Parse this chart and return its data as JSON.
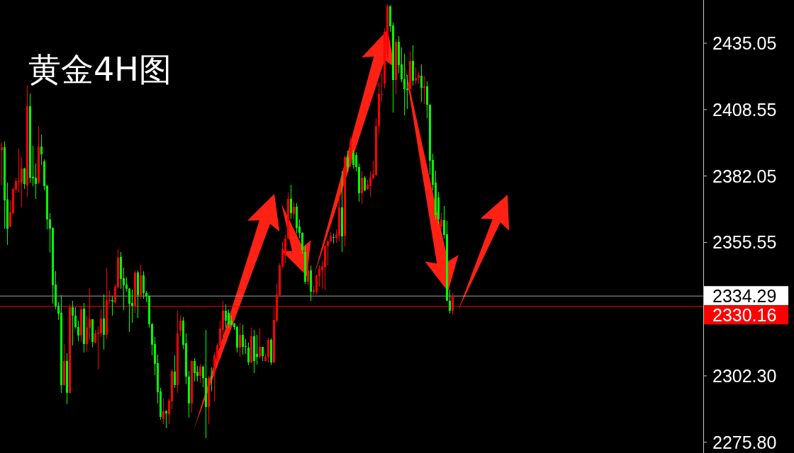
{
  "chart_data": {
    "type": "candlestick",
    "title": "黄金4H图",
    "categories": [
      null,
      null,
      null,
      null,
      null,
      null,
      null,
      null,
      null,
      null,
      null,
      null,
      null,
      null,
      null,
      null,
      null,
      null,
      null,
      null,
      null,
      null,
      null,
      null,
      null,
      null,
      null,
      null,
      null,
      null,
      null,
      null,
      null,
      null,
      null,
      null,
      null,
      null,
      null,
      null,
      null,
      null,
      null,
      null,
      null,
      null,
      null,
      null,
      null,
      null,
      null,
      null,
      null,
      null,
      null,
      null,
      null,
      null,
      null,
      null,
      null,
      null,
      null,
      null,
      null,
      null,
      null,
      null,
      null,
      null,
      null,
      null,
      null,
      null,
      null,
      null,
      null,
      null,
      null,
      null,
      null,
      null,
      null,
      null,
      null,
      null,
      null,
      null,
      null,
      null,
      null,
      null,
      null,
      null,
      null,
      null,
      null,
      null,
      null,
      null,
      null,
      null,
      null,
      null,
      null,
      null,
      null,
      null,
      null,
      null,
      null,
      null,
      null,
      null,
      null,
      null,
      null,
      null,
      null,
      null,
      null,
      null,
      null,
      null,
      null,
      null,
      null,
      null,
      null,
      null,
      null,
      null,
      null,
      null,
      null,
      null,
      null,
      null,
      null,
      null,
      null,
      null,
      null,
      null,
      null,
      null,
      null,
      null,
      null,
      null,
      null,
      null,
      null,
      null,
      null,
      null,
      null,
      null,
      null,
      null,
      null,
      null,
      null,
      null,
      null,
      null,
      null,
      null,
      null,
      null,
      null,
      null,
      null,
      null,
      null,
      null,
      null,
      null,
      null,
      null,
      null,
      null,
      null,
      null,
      null,
      null,
      null,
      null,
      null,
      null,
      null,
      null,
      null,
      null,
      null,
      null,
      null,
      null,
      null,
      null,
      null,
      null,
      null,
      null,
      null,
      null,
      null,
      null,
      null,
      null,
      null,
      null,
      null,
      null,
      null,
      null,
      null,
      null,
      null,
      null,
      null,
      null,
      null,
      null,
      null,
      null,
      null,
      null,
      null,
      null,
      null,
      null,
      null,
      null,
      null,
      null,
      null,
      null,
      null,
      null,
      null,
      null,
      null,
      null,
      null,
      null,
      null,
      null
    ],
    "ohlc": [
      [
        2392.3,
        2395.4,
        2378.3,
        2393.6
      ],
      [
        2393.6,
        2395.8,
        2361.1,
        2372.3
      ],
      [
        2372.5,
        2379.4,
        2354.5,
        2361.1
      ],
      [
        2361.8,
        2372.3,
        2361.6,
        2367.6
      ],
      [
        2367.3,
        2377.5,
        2366.8,
        2376.9
      ],
      [
        2376.7,
        2381.3,
        2375.1,
        2379.9
      ],
      [
        2379.6,
        2393.1,
        2375.5,
        2379.9
      ],
      [
        2379.5,
        2389.5,
        2369.6,
        2385.1
      ],
      [
        2385.1,
        2385.4,
        2376.9,
        2378.9
      ],
      [
        2378.3,
        2418.0,
        2373.7,
        2409.8
      ],
      [
        2409.8,
        2415.0,
        2379.4,
        2381.3
      ],
      [
        2381.7,
        2394.2,
        2378.1,
        2381.0
      ],
      [
        2381.3,
        2387.1,
        2372.8,
        2378.9
      ],
      [
        2379.5,
        2402.1,
        2378.9,
        2393.9
      ],
      [
        2393.9,
        2398.6,
        2386.5,
        2390.6
      ],
      [
        2387.9,
        2388.7,
        2376.2,
        2378.1
      ],
      [
        2378.3,
        2378.3,
        2360.7,
        2364.8
      ],
      [
        2364.8,
        2367.3,
        2351.5,
        2361.1
      ],
      [
        2361.3,
        2361.6,
        2331.2,
        2338.5
      ],
      [
        2338.8,
        2344.0,
        2328.9,
        2330.0
      ],
      [
        2330.2,
        2331.7,
        2324.5,
        2327.1
      ],
      [
        2327.5,
        2334.4,
        2295.5,
        2298.7
      ],
      [
        2298.7,
        2314.9,
        2298.3,
        2308.3
      ],
      [
        2308.3,
        2311.4,
        2291.1,
        2295.5
      ],
      [
        2295.5,
        2330.8,
        2295.3,
        2329.8
      ],
      [
        2329.8,
        2332.2,
        2314.5,
        2326.4
      ],
      [
        2326.4,
        2329.7,
        2321.2,
        2321.8
      ],
      [
        2321.8,
        2324.3,
        2316.1,
        2318.3
      ],
      [
        2318.3,
        2330.0,
        2315.8,
        2328.9
      ],
      [
        2329.2,
        2331.4,
        2311.7,
        2315.0
      ],
      [
        2315.0,
        2326.2,
        2312.0,
        2321.4
      ],
      [
        2321.4,
        2337.4,
        2316.8,
        2324.8
      ],
      [
        2324.8,
        2324.8,
        2313.5,
        2315.8
      ],
      [
        2315.7,
        2320.7,
        2315.2,
        2319.3
      ],
      [
        2319.0,
        2322.1,
        2304.9,
        2319.6
      ],
      [
        2319.3,
        2328.9,
        2317.8,
        2325.1
      ],
      [
        2325.1,
        2334.9,
        2312.7,
        2318.8
      ],
      [
        2318.8,
        2345.1,
        2317.0,
        2332.4
      ],
      [
        2332.1,
        2336.5,
        2331.2,
        2332.6
      ],
      [
        2332.6,
        2333.9,
        2326.2,
        2331.9
      ],
      [
        2331.7,
        2338.7,
        2331.2,
        2338.0
      ],
      [
        2337.6,
        2352.8,
        2337.1,
        2349.5
      ],
      [
        2349.7,
        2351.8,
        2336.9,
        2341.0
      ],
      [
        2341.2,
        2345.4,
        2328.7,
        2338.5
      ],
      [
        2338.8,
        2341.5,
        2336.0,
        2337.1
      ],
      [
        2336.9,
        2337.3,
        2319.8,
        2331.2
      ],
      [
        2331.5,
        2336.7,
        2323.6,
        2330.3
      ],
      [
        2330.3,
        2344.5,
        2327.3,
        2343.5
      ],
      [
        2343.4,
        2344.3,
        2325.5,
        2334.4
      ],
      [
        2334.6,
        2346.7,
        2333.0,
        2342.3
      ],
      [
        2342.3,
        2344.0,
        2333.0,
        2335.3
      ],
      [
        2335.3,
        2336.2,
        2331.7,
        2333.9
      ],
      [
        2334.1,
        2334.4,
        2321.6,
        2323.0
      ],
      [
        2323.0,
        2323.6,
        2310.6,
        2314.7
      ],
      [
        2314.9,
        2317.9,
        2302.6,
        2307.2
      ],
      [
        2307.5,
        2310.8,
        2291.4,
        2295.8
      ],
      [
        2296.0,
        2297.6,
        2284.8,
        2285.9
      ],
      [
        2285.2,
        2293.3,
        2283.2,
        2288.2
      ],
      [
        2288.2,
        2288.7,
        2281.5,
        2287.3
      ],
      [
        2286.9,
        2293.3,
        2283.2,
        2292.3
      ],
      [
        2292.1,
        2304.7,
        2289.1,
        2304.4
      ],
      [
        2304.0,
        2310.6,
        2297.4,
        2298.7
      ],
      [
        2298.7,
        2328.4,
        2295.5,
        2319.3
      ],
      [
        2320.5,
        2326.4,
        2318.1,
        2324.3
      ],
      [
        2324.2,
        2325.7,
        2312.9,
        2314.7
      ],
      [
        2315.2,
        2319.3,
        2298.9,
        2302.0
      ],
      [
        2302.1,
        2304.4,
        2285.5,
        2291.4
      ],
      [
        2291.4,
        2308.5,
        2287.6,
        2308.1
      ],
      [
        2308.3,
        2309.4,
        2300.1,
        2303.5
      ],
      [
        2303.9,
        2306.2,
        2300.1,
        2302.4
      ],
      [
        2302.4,
        2307.2,
        2299.6,
        2306.1
      ],
      [
        2306.1,
        2306.2,
        2297.8,
        2301.5
      ],
      [
        2301.5,
        2320.7,
        2277.3,
        2289.8
      ],
      [
        2290.0,
        2302.4,
        2283.2,
        2301.5
      ],
      [
        2302.1,
        2305.6,
        2296.0,
        2301.7
      ],
      [
        2304.2,
        2311.5,
        2292.0,
        2310.6
      ],
      [
        2308.3,
        2315.4,
        2307.0,
        2314.3
      ],
      [
        2314.1,
        2324.3,
        2313.4,
        2321.2
      ],
      [
        2320.7,
        2332.1,
        2316.6,
        2328.2
      ],
      [
        2328.2,
        2330.9,
        2321.6,
        2324.3
      ],
      [
        2327.5,
        2328.9,
        2321.6,
        2322.9
      ],
      [
        2324.3,
        2326.2,
        2322.5,
        2322.7
      ],
      [
        2323.2,
        2323.6,
        2320.7,
        2321.8
      ],
      [
        2321.8,
        2322.3,
        2311.5,
        2313.5
      ],
      [
        2313.5,
        2323.6,
        2309.9,
        2318.6
      ],
      [
        2318.6,
        2322.7,
        2310.8,
        2313.8
      ],
      [
        2314.1,
        2317.0,
        2311.1,
        2313.8
      ],
      [
        2313.5,
        2315.7,
        2306.5,
        2307.6
      ],
      [
        2307.6,
        2321.4,
        2307.4,
        2318.1
      ],
      [
        2318.1,
        2320.7,
        2303.5,
        2308.3
      ],
      [
        2311.1,
        2318.8,
        2306.8,
        2309.9
      ],
      [
        2309.9,
        2321.2,
        2309.0,
        2313.8
      ],
      [
        2313.8,
        2313.8,
        2308.1,
        2310.2
      ],
      [
        2308.1,
        2311.1,
        2307.9,
        2309.9
      ],
      [
        2309.9,
        2317.5,
        2307.7,
        2316.8
      ],
      [
        2316.8,
        2317.2,
        2306.5,
        2307.6
      ],
      [
        2307.6,
        2329.4,
        2307.4,
        2324.5
      ],
      [
        2324.3,
        2339.0,
        2323.4,
        2334.9
      ],
      [
        2334.6,
        2347.2,
        2333.9,
        2346.3
      ],
      [
        2345.9,
        2355.9,
        2345.4,
        2353.0
      ],
      [
        2350.4,
        2358.4,
        2347.2,
        2357.2
      ],
      [
        2357.2,
        2375.5,
        2357.2,
        2372.8
      ],
      [
        2372.8,
        2378.5,
        2365.0,
        2367.3
      ],
      [
        2367.0,
        2371.9,
        2364.6,
        2369.9
      ],
      [
        2369.9,
        2371.1,
        2359.1,
        2361.4
      ],
      [
        2361.8,
        2364.6,
        2357.2,
        2359.3
      ],
      [
        2359.3,
        2359.5,
        2350.8,
        2352.7
      ],
      [
        2351.8,
        2354.5,
        2339.0,
        2339.9
      ],
      [
        2339.9,
        2346.3,
        2338.5,
        2344.5
      ],
      [
        2344.5,
        2346.3,
        2332.1,
        2335.8
      ],
      [
        2335.8,
        2338.2,
        2334.9,
        2336.4
      ],
      [
        2335.8,
        2342.6,
        2334.9,
        2342.4
      ],
      [
        2342.2,
        2346.3,
        2338.0,
        2344.9
      ],
      [
        2344.5,
        2348.1,
        2337.1,
        2346.0
      ],
      [
        2345.8,
        2354.2,
        2336.4,
        2354.2
      ],
      [
        2354.1,
        2356.8,
        2346.3,
        2355.9
      ],
      [
        2355.9,
        2359.5,
        2355.6,
        2358.2
      ],
      [
        2357.8,
        2359.1,
        2355.0,
        2357.5
      ],
      [
        2357.5,
        2360.9,
        2355.4,
        2358.9
      ],
      [
        2358.2,
        2374.6,
        2355.9,
        2369.6
      ],
      [
        2369.6,
        2383.8,
        2351.8,
        2358.0
      ],
      [
        2358.2,
        2390.2,
        2354.1,
        2389.7
      ],
      [
        2389.7,
        2392.0,
        2383.6,
        2385.6
      ],
      [
        2387.1,
        2397.5,
        2385.7,
        2396.1
      ],
      [
        2391.2,
        2392.5,
        2385.1,
        2386.5
      ],
      [
        2390.3,
        2391.5,
        2383.8,
        2385.6
      ],
      [
        2385.6,
        2387.0,
        2371.9,
        2375.1
      ],
      [
        2375.1,
        2383.8,
        2371.0,
        2381.5
      ],
      [
        2381.5,
        2381.9,
        2376.0,
        2376.4
      ],
      [
        2376.9,
        2380.5,
        2376.4,
        2378.7
      ],
      [
        2378.1,
        2383.8,
        2373.9,
        2381.5
      ],
      [
        2381.0,
        2388.3,
        2380.8,
        2382.7
      ],
      [
        2382.4,
        2405.2,
        2381.9,
        2402.1
      ],
      [
        2402.1,
        2419.4,
        2398.8,
        2414.6
      ],
      [
        2414.4,
        2423.1,
        2411.7,
        2414.6
      ],
      [
        2419.0,
        2440.9,
        2417.1,
        2439.5
      ],
      [
        2430.4,
        2450.5,
        2428.7,
        2449.8
      ],
      [
        2449.8,
        2450.3,
        2439.5,
        2441.8
      ],
      [
        2442.1,
        2443.4,
        2407.5,
        2420.3
      ],
      [
        2420.3,
        2436.8,
        2414.8,
        2435.6
      ],
      [
        2435.6,
        2437.9,
        2423.3,
        2426.3
      ],
      [
        2426.5,
        2433.3,
        2419.4,
        2420.8
      ],
      [
        2420.8,
        2430.8,
        2406.3,
        2416.7
      ],
      [
        2417.1,
        2422.4,
        2408.9,
        2416.5
      ],
      [
        2416.7,
        2431.8,
        2416.7,
        2428.1
      ],
      [
        2428.1,
        2434.2,
        2418.0,
        2420.2
      ],
      [
        2420.2,
        2425.4,
        2418.5,
        2421.1
      ],
      [
        2421.3,
        2423.5,
        2418.7,
        2422.4
      ],
      [
        2422.2,
        2426.7,
        2411.7,
        2417.3
      ],
      [
        2417.3,
        2422.2,
        2410.7,
        2417.8
      ],
      [
        2417.8,
        2419.7,
        2405.0,
        2410.4
      ],
      [
        2410.4,
        2410.7,
        2382.4,
        2388.3
      ],
      [
        2388.5,
        2391.1,
        2376.4,
        2378.7
      ],
      [
        2379.4,
        2384.2,
        2364.6,
        2366.4
      ],
      [
        2373.5,
        2375.8,
        2362.7,
        2364.6
      ],
      [
        2361.8,
        2367.3,
        2360.9,
        2364.6
      ],
      [
        2364.4,
        2370.0,
        2357.2,
        2358.6
      ],
      [
        2358.9,
        2364.1,
        2332.1,
        2332.1
      ],
      [
        2332.1,
        2336.7,
        2327.1,
        2328.4
      ],
      [
        2328.4,
        2335.3,
        2326.9,
        2334.3
      ],
      null,
      null,
      null,
      null,
      null,
      null,
      null,
      null,
      null,
      null,
      null,
      null,
      null,
      null,
      null,
      null,
      null,
      null,
      null,
      null,
      null,
      null,
      null,
      null,
      null,
      null,
      null,
      null,
      null,
      null,
      null,
      null,
      null,
      null,
      null,
      null,
      null,
      null,
      null,
      null,
      null,
      null,
      null,
      null,
      null,
      null,
      null,
      null,
      null,
      null,
      null,
      null,
      null,
      null,
      null,
      null,
      null,
      null,
      null,
      null,
      null,
      null,
      null,
      null,
      null,
      null,
      null,
      null,
      null,
      null,
      null,
      null,
      null,
      null,
      null,
      null,
      null,
      null,
      null,
      null,
      null,
      null,
      null,
      null,
      null,
      null,
      null,
      null
    ],
    "colors": [
      "#ff0000",
      "#00ff00",
      "#00ff00",
      "#ff0000",
      "#ff0000",
      "#ff0000",
      "#ff0000",
      "#ff0000",
      "#00ff00",
      "#ff0000",
      "#00ff00",
      "#00ff00",
      "#00ff00",
      "#ff0000",
      "#00ff00",
      "#00ff00",
      "#00ff00",
      "#00ff00",
      "#00ff00",
      "#00ff00",
      "#00ff00",
      "#00ff00",
      "#ff0000",
      "#00ff00",
      "#ff0000",
      "#00ff00",
      "#00ff00",
      "#00ff00",
      "#ff0000",
      "#00ff00",
      "#ff0000",
      "#ff0000",
      "#00ff00",
      "#ff0000",
      "#ff0000",
      "#ff0000",
      "#00ff00",
      "#ff0000",
      "#ff0000",
      "#00ff00",
      "#ff0000",
      "#ff0000",
      "#00ff00",
      "#00ff00",
      "#00ff00",
      "#00ff00",
      "#00ff00",
      "#ff0000",
      "#00ff00",
      "#ff0000",
      "#00ff00",
      "#00ff00",
      "#00ff00",
      "#00ff00",
      "#00ff00",
      "#00ff00",
      "#00ff00",
      "#ff0000",
      "#00ff00",
      "#ff0000",
      "#ff0000",
      "#00ff00",
      "#ff0000",
      "#ff0000",
      "#00ff00",
      "#00ff00",
      "#00ff00",
      "#ff0000",
      "#00ff00",
      "#00ff00",
      "#ff0000",
      "#00ff00",
      "#00ff00",
      "#ff0000",
      "#00ff00",
      "#ff0000",
      "#ff0000",
      "#ff0000",
      "#ff0000",
      "#00ff00",
      "#00ff00",
      "#00ff00",
      "#00ff00",
      "#00ff00",
      "#ff0000",
      "#00ff00",
      "#00ff00",
      "#00ff00",
      "#ff0000",
      "#00ff00",
      "#00ff00",
      "#ff0000",
      "#00ff00",
      "#ff0000",
      "#ff0000",
      "#00ff00",
      "#ff0000",
      "#ff0000",
      "#ff0000",
      "#ff0000",
      "#ff0000",
      "#ff0000",
      "#00ff00",
      "#ff0000",
      "#00ff00",
      "#00ff00",
      "#00ff00",
      "#00ff00",
      "#ff0000",
      "#00ff00",
      "#ff0000",
      "#ff0000",
      "#ff0000",
      "#ff0000",
      "#ff0000",
      "#ff0000",
      "#ff0000",
      "#00ff00",
      "#ff0000",
      "#ff0000",
      "#00ff00",
      "#ff0000",
      "#00ff00",
      "#ff0000",
      "#00ff00",
      "#00ff00",
      "#00ff00",
      "#ff0000",
      "#00ff00",
      "#ff0000",
      "#ff0000",
      "#ff0000",
      "#ff0000",
      "#ff0000",
      "#ff0000",
      "#ff0000",
      "#ff0000",
      "#00ff00",
      "#00ff00",
      "#ff0000",
      "#00ff00",
      "#00ff00",
      "#00ff00",
      "#00ff00",
      "#ff0000",
      "#00ff00",
      "#ff0000",
      "#ff0000",
      "#00ff00",
      "#ff0000",
      "#00ff00",
      "#00ff00",
      "#00ff00",
      "#00ff00",
      "#00ff00",
      "#ff0000",
      "#00ff00",
      "#00ff00",
      "#00ff00",
      "#ff0000",
      null,
      null,
      null,
      null,
      null,
      null,
      null,
      null,
      null,
      null,
      null,
      null,
      null,
      null,
      null,
      null,
      null,
      null,
      null,
      null,
      null,
      null,
      null,
      null,
      null,
      null,
      null,
      null,
      null,
      null,
      null,
      null,
      null,
      null,
      null,
      null,
      null,
      null,
      null,
      null,
      null,
      null,
      null,
      null,
      null,
      null,
      null,
      null,
      null,
      null,
      null,
      null,
      null,
      null,
      null,
      null,
      null,
      null,
      null,
      null,
      null,
      null,
      null,
      null,
      null,
      null,
      null,
      null,
      null,
      null,
      null,
      null,
      null,
      null,
      null,
      null,
      null,
      null,
      null,
      null,
      null,
      null,
      null,
      null,
      null,
      null,
      null,
      null
    ],
    "ylim": [
      2271.5,
      2452.3
    ],
    "yticks": [
      2435.05,
      2408.55,
      2382.05,
      2355.55,
      {
        "value": 2302.3,
        "label": "2302.30"
      },
      {
        "value": 2275.8,
        "label": "2275.80"
      }
    ],
    "ref_lines": [
      {
        "axis": "y",
        "value": 2334.29,
        "label": "2334.29",
        "color": "#a0a0a0"
      },
      {
        "axis": "y",
        "value": 2330.16,
        "label": "2330.16",
        "color": "#ff0000"
      }
    ]
  }
}
